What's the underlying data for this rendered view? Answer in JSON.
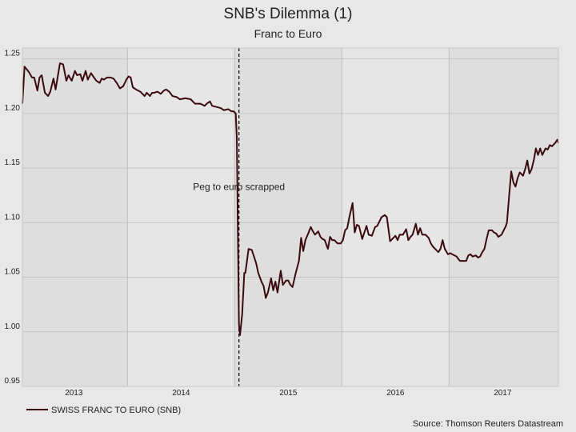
{
  "chart_data": {
    "type": "line",
    "title": "SNB's Dilemma (1)",
    "subtitle": "Franc to Euro",
    "source": "Source: Thomson Reuters Datastream",
    "annotation": {
      "text": "Peg to euro scrapped",
      "x": 2015.04,
      "y": 1.13
    },
    "xlim": [
      2013.02,
      2018.02
    ],
    "ylim": [
      0.95,
      1.26
    ],
    "xticks": [
      {
        "value": 2013.5,
        "label": "2013"
      },
      {
        "value": 2014.5,
        "label": "2014"
      },
      {
        "value": 2015.5,
        "label": "2015"
      },
      {
        "value": 2016.5,
        "label": "2016"
      },
      {
        "value": 2017.5,
        "label": "2017"
      }
    ],
    "xgrid": [
      2014,
      2015,
      2016,
      2017
    ],
    "yticks": [
      0.95,
      {
        "value": 1.0,
        "label": "1.00"
      },
      1.05,
      {
        "value": 1.1,
        "label": "1.10"
      },
      1.15,
      {
        "value": 1.2,
        "label": "1.20"
      },
      1.25
    ],
    "grid": true,
    "x": [
      2013.02,
      2013.04,
      2013.08,
      2013.11,
      2013.13,
      2013.16,
      2013.18,
      2013.2,
      2013.23,
      2013.26,
      2013.28,
      2013.31,
      2013.33,
      2013.37,
      2013.4,
      2013.43,
      2013.45,
      2013.48,
      2013.51,
      2013.53,
      2013.56,
      2013.58,
      2013.61,
      2013.63,
      2013.66,
      2013.68,
      2013.71,
      2013.74,
      2013.76,
      2013.78,
      2013.81,
      2013.84,
      2013.87,
      2013.9,
      2013.93,
      2013.96,
      2013.99,
      2014.01,
      2014.03,
      2014.05,
      2014.08,
      2014.12,
      2014.16,
      2014.18,
      2014.21,
      2014.23,
      2014.25,
      2014.28,
      2014.31,
      2014.34,
      2014.36,
      2014.39,
      2014.42,
      2014.46,
      2014.49,
      2014.54,
      2014.59,
      2014.63,
      2014.68,
      2014.72,
      2014.74,
      2014.77,
      2014.79,
      2014.83,
      2014.87,
      2014.9,
      2014.94,
      2014.97,
      2014.99,
      2015.01,
      2015.02,
      2015.04,
      2015.05,
      2015.07,
      2015.09,
      2015.1,
      2015.13,
      2015.16,
      2015.2,
      2015.22,
      2015.25,
      2015.27,
      2015.29,
      2015.31,
      2015.34,
      2015.36,
      2015.38,
      2015.4,
      2015.43,
      2015.45,
      2015.48,
      2015.5,
      2015.52,
      2015.54,
      2015.57,
      2015.6,
      2015.62,
      2015.64,
      2015.66,
      2015.69,
      2015.71,
      2015.73,
      2015.75,
      2015.78,
      2015.8,
      2015.82,
      2015.84,
      2015.87,
      2015.89,
      2015.91,
      2015.93,
      2015.96,
      2015.99,
      2016.01,
      2016.03,
      2016.05,
      2016.07,
      2016.1,
      2016.12,
      2016.14,
      2016.16,
      2016.19,
      2016.21,
      2016.23,
      2016.25,
      2016.28,
      2016.31,
      2016.33,
      2016.35,
      2016.37,
      2016.4,
      2016.42,
      2016.45,
      2016.47,
      2016.5,
      2016.52,
      2016.54,
      2016.57,
      2016.6,
      2016.62,
      2016.64,
      2016.66,
      2016.69,
      2016.71,
      2016.73,
      2016.75,
      2016.78,
      2016.81,
      2016.83,
      2016.85,
      2016.87,
      2016.9,
      2016.92,
      2016.94,
      2016.96,
      2016.99,
      2017.01,
      2017.03,
      2017.05,
      2017.07,
      2017.1,
      2017.13,
      2017.16,
      2017.18,
      2017.2,
      2017.22,
      2017.25,
      2017.27,
      2017.29,
      2017.31,
      2017.33,
      2017.35,
      2017.37,
      2017.4,
      2017.42,
      2017.44,
      2017.46,
      2017.49,
      2017.5,
      2017.53,
      2017.54,
      2017.56,
      2017.58,
      2017.6,
      2017.62,
      2017.64,
      2017.66,
      2017.69,
      2017.71,
      2017.73,
      2017.75,
      2017.77,
      2017.79,
      2017.81,
      2017.83,
      2017.85,
      2017.87,
      2017.9,
      2017.92,
      2017.94,
      2017.96,
      2017.99,
      2018.01,
      2018.02
    ],
    "series": [
      {
        "name": "SWISS FRANC TO EURO (SNB)",
        "color": "#3a0a0e",
        "values": [
          1.209,
          1.243,
          1.238,
          1.233,
          1.233,
          1.221,
          1.233,
          1.235,
          1.219,
          1.216,
          1.22,
          1.232,
          1.222,
          1.246,
          1.245,
          1.23,
          1.235,
          1.23,
          1.239,
          1.235,
          1.236,
          1.23,
          1.239,
          1.231,
          1.237,
          1.234,
          1.23,
          1.228,
          1.232,
          1.231,
          1.233,
          1.233,
          1.232,
          1.228,
          1.223,
          1.225,
          1.231,
          1.234,
          1.233,
          1.224,
          1.222,
          1.22,
          1.216,
          1.219,
          1.216,
          1.219,
          1.219,
          1.22,
          1.218,
          1.221,
          1.222,
          1.22,
          1.216,
          1.215,
          1.213,
          1.214,
          1.213,
          1.209,
          1.209,
          1.207,
          1.209,
          1.211,
          1.207,
          1.206,
          1.205,
          1.203,
          1.204,
          1.202,
          1.202,
          1.2,
          1.178,
          1.007,
          0.997,
          1.016,
          1.054,
          1.054,
          1.076,
          1.075,
          1.063,
          1.054,
          1.046,
          1.042,
          1.031,
          1.036,
          1.049,
          1.038,
          1.046,
          1.036,
          1.056,
          1.043,
          1.047,
          1.047,
          1.043,
          1.041,
          1.054,
          1.065,
          1.086,
          1.074,
          1.084,
          1.091,
          1.096,
          1.092,
          1.089,
          1.092,
          1.087,
          1.085,
          1.084,
          1.076,
          1.087,
          1.084,
          1.084,
          1.081,
          1.081,
          1.084,
          1.093,
          1.095,
          1.105,
          1.118,
          1.091,
          1.098,
          1.097,
          1.085,
          1.091,
          1.097,
          1.089,
          1.088,
          1.096,
          1.097,
          1.101,
          1.105,
          1.107,
          1.105,
          1.083,
          1.085,
          1.088,
          1.084,
          1.089,
          1.089,
          1.094,
          1.084,
          1.087,
          1.089,
          1.099,
          1.089,
          1.095,
          1.089,
          1.089,
          1.086,
          1.081,
          1.078,
          1.076,
          1.073,
          1.076,
          1.084,
          1.076,
          1.071,
          1.072,
          1.071,
          1.07,
          1.069,
          1.065,
          1.065,
          1.065,
          1.07,
          1.071,
          1.069,
          1.07,
          1.068,
          1.069,
          1.073,
          1.076,
          1.085,
          1.093,
          1.093,
          1.091,
          1.09,
          1.087,
          1.089,
          1.091,
          1.097,
          1.1,
          1.124,
          1.147,
          1.137,
          1.133,
          1.141,
          1.146,
          1.143,
          1.149,
          1.157,
          1.145,
          1.149,
          1.157,
          1.168,
          1.162,
          1.168,
          1.162,
          1.168,
          1.167,
          1.171,
          1.17,
          1.173,
          1.176,
          1.173
        ]
      }
    ]
  }
}
